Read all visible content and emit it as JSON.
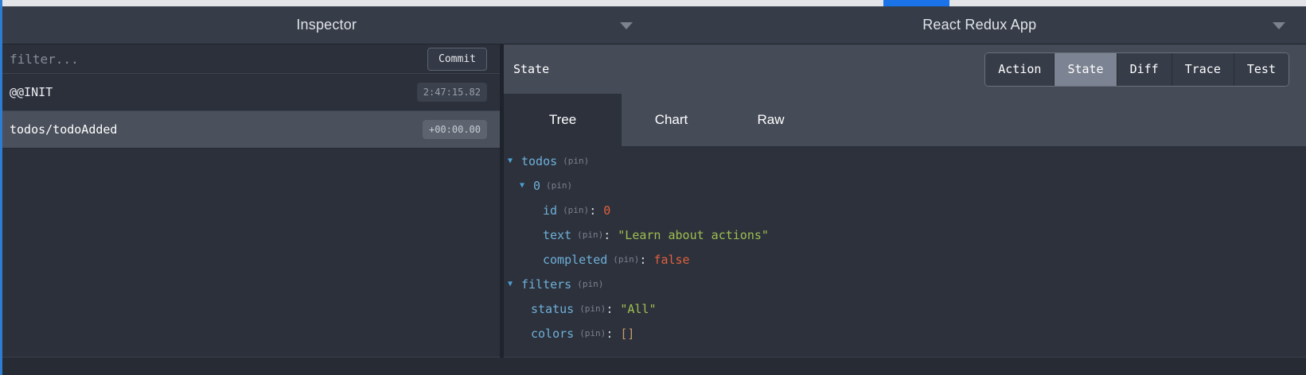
{
  "colors": {
    "progress_blue": "#1a73e8",
    "accent_blue": "#2d7dd2",
    "key_blue": "#6fb0d8",
    "value_orange": "#e0603c",
    "value_green": "#a1bf4f",
    "value_tan": "#c89a6a"
  },
  "icons": {
    "expand_arrow": "▼"
  },
  "header": {
    "left_title": "Inspector",
    "right_title": "React Redux App"
  },
  "inspector": {
    "filter_placeholder": "filter...",
    "commit_label": "Commit",
    "actions": [
      {
        "name": "@@INIT",
        "time": "2:47:15.82",
        "selected": false
      },
      {
        "name": "todos/todoAdded",
        "time": "+00:00.00",
        "selected": true
      }
    ]
  },
  "right_panel": {
    "title": "State",
    "tabs": [
      {
        "label": "Action",
        "selected": false
      },
      {
        "label": "State",
        "selected": true
      },
      {
        "label": "Diff",
        "selected": false
      },
      {
        "label": "Trace",
        "selected": false
      },
      {
        "label": "Test",
        "selected": false
      }
    ],
    "subtabs": [
      {
        "label": "Tree",
        "selected": true
      },
      {
        "label": "Chart",
        "selected": false
      },
      {
        "label": "Raw",
        "selected": false
      }
    ],
    "punct_colon": ":",
    "tree": {
      "nodes": [
        {
          "key": "todos",
          "pin": "(pin)",
          "expandable": true,
          "level": 0
        },
        {
          "key": "0",
          "pin": "(pin)",
          "expandable": true,
          "level": 1
        },
        {
          "key": "id",
          "pin": "(pin)",
          "value": "0",
          "type": "number",
          "level": 2
        },
        {
          "key": "text",
          "pin": "(pin)",
          "value": "\"Learn about actions\"",
          "type": "string",
          "level": 2
        },
        {
          "key": "completed",
          "pin": "(pin)",
          "value": "false",
          "type": "boolean",
          "level": 2
        },
        {
          "key": "filters",
          "pin": "(pin)",
          "expandable": true,
          "level": 0
        },
        {
          "key": "status",
          "pin": "(pin)",
          "value": "\"All\"",
          "type": "string",
          "level": 1
        },
        {
          "key": "colors",
          "pin": "(pin)",
          "value": "[]",
          "type": "array",
          "level": 1
        }
      ]
    }
  }
}
